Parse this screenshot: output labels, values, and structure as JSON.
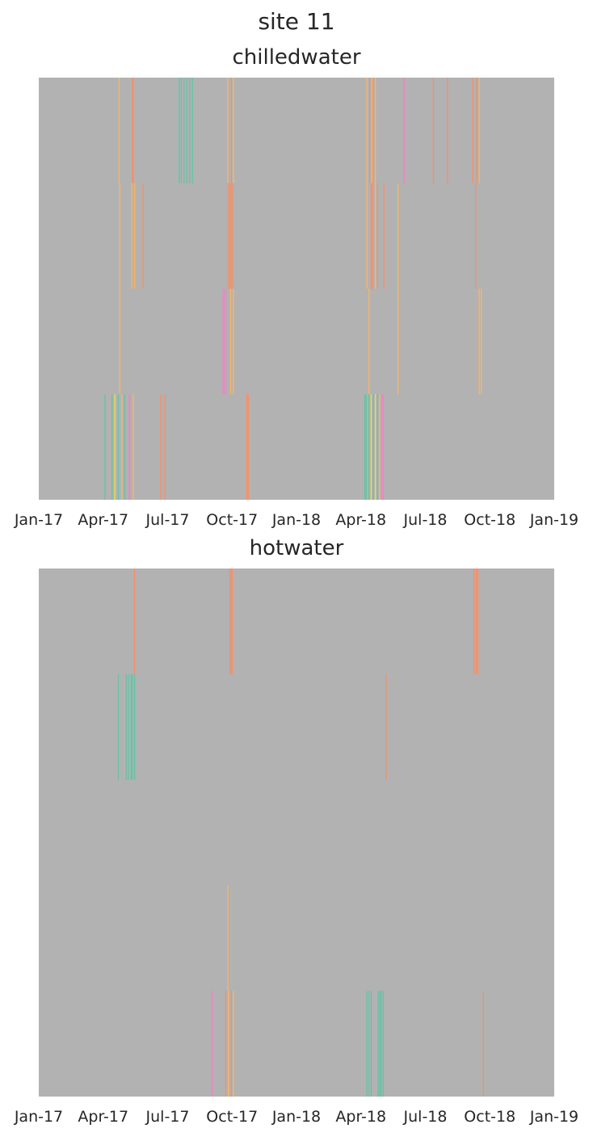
{
  "title": "site 11",
  "colors": {
    "background": "#b2b2b2",
    "green": "#66c2a5",
    "orange": "#fc8d62",
    "light_orange": "#fdb462",
    "pink": "#e78ac3",
    "yellow": "#ffd92f"
  },
  "chart_data": [
    {
      "type": "heatmap",
      "title": "chilledwater",
      "xlabel": "",
      "ylabel": "",
      "x_ticks": [
        "Jan-17",
        "Apr-17",
        "Jul-17",
        "Oct-17",
        "Jan-18",
        "Apr-18",
        "Jul-18",
        "Oct-18",
        "Jan-19"
      ],
      "x_range": [
        "2017-01-01",
        "2019-01-01"
      ],
      "rows": 4,
      "marks": [
        {
          "row": 0,
          "date": "2017-04-24",
          "color": "light_orange"
        },
        {
          "row": 0,
          "date": "2017-05-13",
          "color": "orange"
        },
        {
          "row": 0,
          "date": "2017-05-14",
          "color": "orange"
        },
        {
          "row": 0,
          "date": "2017-07-18",
          "color": "green"
        },
        {
          "row": 0,
          "date": "2017-07-21",
          "color": "green"
        },
        {
          "row": 0,
          "date": "2017-07-25",
          "color": "green"
        },
        {
          "row": 0,
          "date": "2017-07-29",
          "color": "green"
        },
        {
          "row": 0,
          "date": "2017-08-02",
          "color": "green"
        },
        {
          "row": 0,
          "date": "2017-08-06",
          "color": "green"
        },
        {
          "row": 0,
          "date": "2017-09-25",
          "color": "light_orange"
        },
        {
          "row": 0,
          "date": "2017-09-30",
          "color": "orange"
        },
        {
          "row": 0,
          "date": "2017-10-03",
          "color": "light_orange"
        },
        {
          "row": 0,
          "date": "2018-04-10",
          "color": "light_orange"
        },
        {
          "row": 0,
          "date": "2018-04-14",
          "color": "orange"
        },
        {
          "row": 0,
          "date": "2018-04-17",
          "color": "light_orange"
        },
        {
          "row": 0,
          "date": "2018-04-19",
          "color": "orange"
        },
        {
          "row": 0,
          "date": "2018-04-22",
          "color": "light_orange"
        },
        {
          "row": 0,
          "date": "2018-06-01",
          "color": "pink"
        },
        {
          "row": 0,
          "date": "2018-06-02",
          "color": "pink"
        },
        {
          "row": 0,
          "date": "2018-07-13",
          "color": "orange"
        },
        {
          "row": 0,
          "date": "2018-08-02",
          "color": "orange"
        },
        {
          "row": 0,
          "date": "2018-09-07",
          "color": "orange"
        },
        {
          "row": 0,
          "date": "2018-09-13",
          "color": "orange"
        },
        {
          "row": 0,
          "date": "2018-09-16",
          "color": "light_orange"
        },
        {
          "row": 1,
          "date": "2017-04-25",
          "color": "light_orange"
        },
        {
          "row": 1,
          "date": "2017-05-12",
          "color": "light_orange"
        },
        {
          "row": 1,
          "date": "2017-05-16",
          "color": "light_orange"
        },
        {
          "row": 1,
          "date": "2017-05-28",
          "color": "orange"
        },
        {
          "row": 1,
          "date": "2017-09-26",
          "color": "orange"
        },
        {
          "row": 1,
          "date": "2017-09-28",
          "color": "orange"
        },
        {
          "row": 1,
          "date": "2017-09-30",
          "color": "orange"
        },
        {
          "row": 1,
          "date": "2017-10-02",
          "color": "orange"
        },
        {
          "row": 1,
          "date": "2018-04-10",
          "color": "light_orange"
        },
        {
          "row": 1,
          "date": "2018-04-16",
          "color": "orange"
        },
        {
          "row": 1,
          "date": "2018-04-18",
          "color": "orange"
        },
        {
          "row": 1,
          "date": "2018-04-22",
          "color": "light_orange"
        },
        {
          "row": 1,
          "date": "2018-04-25",
          "color": "orange"
        },
        {
          "row": 1,
          "date": "2018-05-04",
          "color": "orange"
        },
        {
          "row": 1,
          "date": "2018-05-24",
          "color": "light_orange"
        },
        {
          "row": 1,
          "date": "2018-09-11",
          "color": "orange"
        },
        {
          "row": 2,
          "date": "2017-04-25",
          "color": "light_orange"
        },
        {
          "row": 2,
          "date": "2017-09-18",
          "color": "pink"
        },
        {
          "row": 2,
          "date": "2017-09-20",
          "color": "pink"
        },
        {
          "row": 2,
          "date": "2017-09-22",
          "color": "pink"
        },
        {
          "row": 2,
          "date": "2017-09-29",
          "color": "light_orange"
        },
        {
          "row": 2,
          "date": "2017-10-03",
          "color": "light_orange"
        },
        {
          "row": 2,
          "date": "2018-04-13",
          "color": "light_orange"
        },
        {
          "row": 2,
          "date": "2018-05-24",
          "color": "light_orange"
        },
        {
          "row": 2,
          "date": "2018-09-16",
          "color": "light_orange"
        },
        {
          "row": 2,
          "date": "2018-09-19",
          "color": "light_orange"
        },
        {
          "row": 3,
          "date": "2017-04-04",
          "color": "green"
        },
        {
          "row": 3,
          "date": "2017-04-14",
          "color": "green"
        },
        {
          "row": 3,
          "date": "2017-04-18",
          "color": "yellow"
        },
        {
          "row": 3,
          "date": "2017-04-23",
          "color": "green"
        },
        {
          "row": 3,
          "date": "2017-04-28",
          "color": "light_orange"
        },
        {
          "row": 3,
          "date": "2017-05-02",
          "color": "green"
        },
        {
          "row": 3,
          "date": "2017-05-08",
          "color": "pink"
        },
        {
          "row": 3,
          "date": "2017-05-09",
          "color": "pink"
        },
        {
          "row": 3,
          "date": "2017-05-14",
          "color": "light_orange"
        },
        {
          "row": 3,
          "date": "2017-06-22",
          "color": "orange"
        },
        {
          "row": 3,
          "date": "2017-06-28",
          "color": "orange"
        },
        {
          "row": 3,
          "date": "2017-10-22",
          "color": "orange"
        },
        {
          "row": 3,
          "date": "2017-10-24",
          "color": "orange"
        },
        {
          "row": 3,
          "date": "2018-04-07",
          "color": "green"
        },
        {
          "row": 3,
          "date": "2018-04-09",
          "color": "green"
        },
        {
          "row": 3,
          "date": "2018-04-13",
          "color": "green"
        },
        {
          "row": 3,
          "date": "2018-04-16",
          "color": "yellow"
        },
        {
          "row": 3,
          "date": "2018-04-19",
          "color": "green"
        },
        {
          "row": 3,
          "date": "2018-04-22",
          "color": "yellow"
        },
        {
          "row": 3,
          "date": "2018-04-25",
          "color": "green"
        },
        {
          "row": 3,
          "date": "2018-04-28",
          "color": "light_orange"
        },
        {
          "row": 3,
          "date": "2018-05-01",
          "color": "pink"
        },
        {
          "row": 3,
          "date": "2018-05-02",
          "color": "pink"
        },
        {
          "row": 3,
          "date": "2018-05-03",
          "color": "pink"
        }
      ]
    },
    {
      "type": "heatmap",
      "title": "hotwater",
      "xlabel": "",
      "ylabel": "",
      "x_ticks": [
        "Jan-17",
        "Apr-17",
        "Jul-17",
        "Oct-17",
        "Jan-18",
        "Apr-18",
        "Jul-18",
        "Oct-18",
        "Jan-19"
      ],
      "x_range": [
        "2017-01-01",
        "2019-01-01"
      ],
      "rows": 5,
      "marks": [
        {
          "row": 0,
          "date": "2017-05-16",
          "color": "orange"
        },
        {
          "row": 0,
          "date": "2017-09-28",
          "color": "orange"
        },
        {
          "row": 0,
          "date": "2017-09-30",
          "color": "orange"
        },
        {
          "row": 0,
          "date": "2017-10-01",
          "color": "orange"
        },
        {
          "row": 0,
          "date": "2018-09-09",
          "color": "orange"
        },
        {
          "row": 0,
          "date": "2018-09-12",
          "color": "orange"
        },
        {
          "row": 0,
          "date": "2018-09-14",
          "color": "orange"
        },
        {
          "row": 1,
          "date": "2017-04-23",
          "color": "green"
        },
        {
          "row": 1,
          "date": "2017-05-04",
          "color": "green"
        },
        {
          "row": 1,
          "date": "2017-05-07",
          "color": "green"
        },
        {
          "row": 1,
          "date": "2017-05-11",
          "color": "green"
        },
        {
          "row": 1,
          "date": "2017-05-13",
          "color": "green"
        },
        {
          "row": 1,
          "date": "2017-05-16",
          "color": "green"
        },
        {
          "row": 1,
          "date": "2018-05-07",
          "color": "orange"
        },
        {
          "row": 3,
          "date": "2017-09-25",
          "color": "light_orange"
        },
        {
          "row": 4,
          "date": "2017-09-02",
          "color": "pink"
        },
        {
          "row": 4,
          "date": "2017-09-03",
          "color": "pink"
        },
        {
          "row": 4,
          "date": "2017-09-22",
          "color": "orange"
        },
        {
          "row": 4,
          "date": "2017-09-26",
          "color": "light_orange"
        },
        {
          "row": 4,
          "date": "2017-09-30",
          "color": "orange"
        },
        {
          "row": 4,
          "date": "2017-10-03",
          "color": "light_orange"
        },
        {
          "row": 4,
          "date": "2018-04-10",
          "color": "green"
        },
        {
          "row": 4,
          "date": "2018-04-13",
          "color": "green"
        },
        {
          "row": 4,
          "date": "2018-04-16",
          "color": "green"
        },
        {
          "row": 4,
          "date": "2018-04-26",
          "color": "green"
        },
        {
          "row": 4,
          "date": "2018-04-28",
          "color": "green"
        },
        {
          "row": 4,
          "date": "2018-04-30",
          "color": "green"
        },
        {
          "row": 4,
          "date": "2018-05-03",
          "color": "green"
        },
        {
          "row": 4,
          "date": "2018-09-22",
          "color": "orange"
        }
      ]
    }
  ]
}
